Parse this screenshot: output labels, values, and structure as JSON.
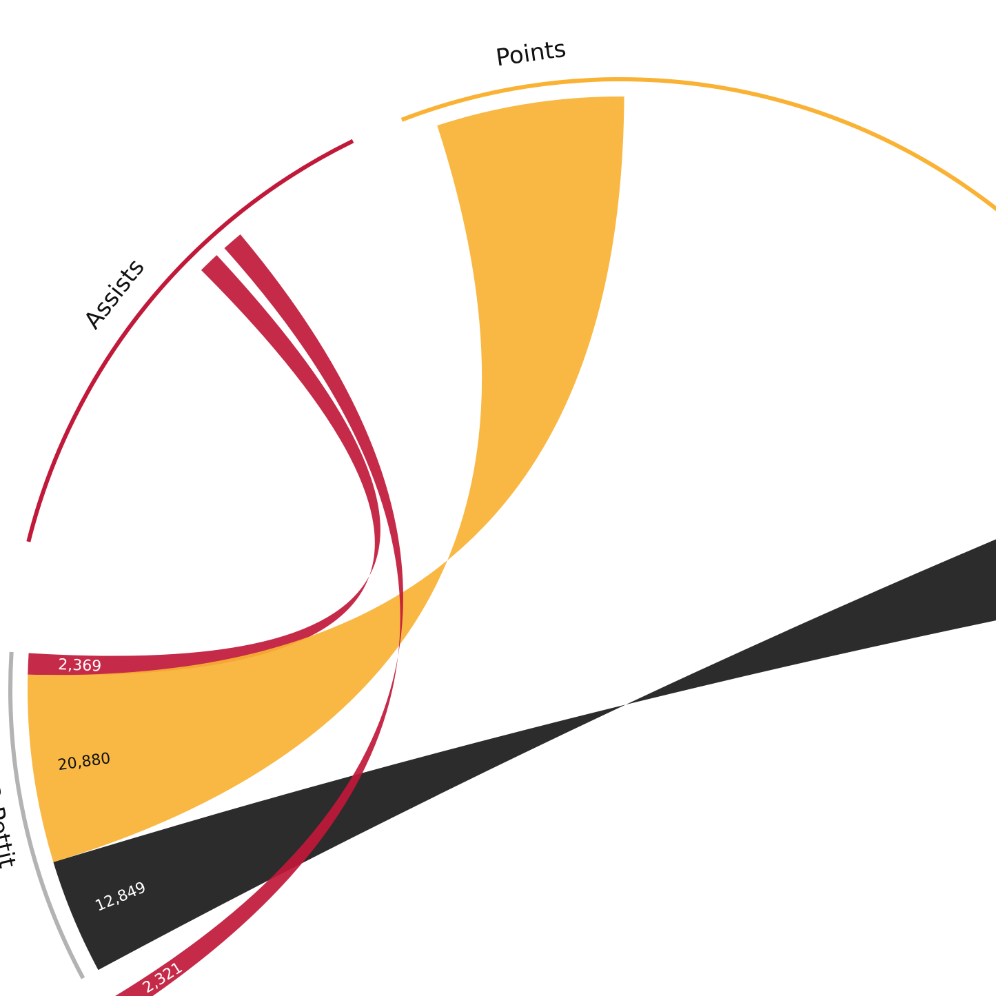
{
  "chart_data": {
    "type": "chord",
    "groups": [
      {
        "name": "Assists",
        "color": "#c0193a"
      },
      {
        "name": "Points",
        "color": "#f9b234"
      }
    ],
    "players": [
      {
        "name": "B Pettit",
        "values": [
          2369,
          20880,
          12849
        ],
        "value_labels": [
          "2,369",
          "20,880",
          "12,849"
        ],
        "colors": [
          "#c0193a",
          "#f9b234",
          "#1a1a1a"
        ]
      },
      {
        "name": null,
        "values": [
          2321
        ],
        "value_labels": [
          "2,321"
        ],
        "colors": [
          "#c0193a"
        ]
      }
    ],
    "player_ring_color": "#b3b3b3"
  }
}
